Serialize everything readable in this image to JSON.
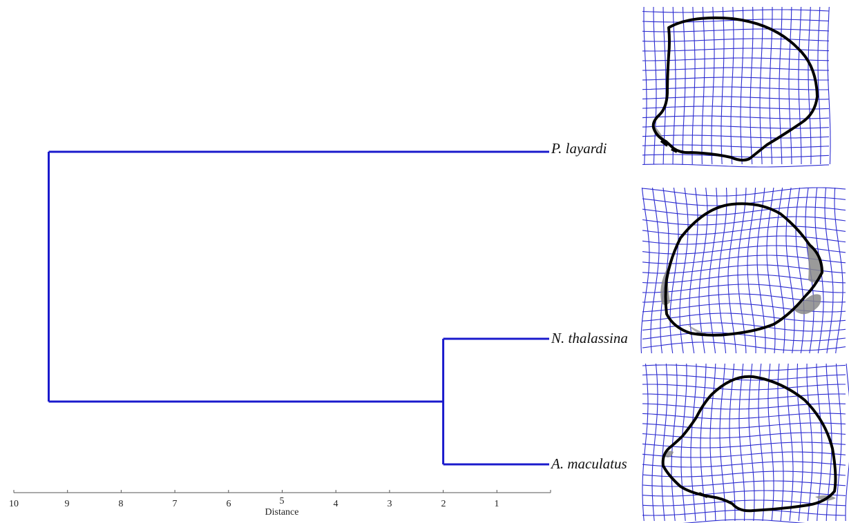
{
  "dendrogram": {
    "leaves": [
      "P. layardi",
      "N. thalassina",
      "A. maculatus"
    ],
    "merges": [
      {
        "members": [
          "N. thalassina",
          "A. maculatus"
        ],
        "distance": 2.0
      },
      {
        "members": [
          "P. layardi",
          "N. thalassina",
          "A. maculatus"
        ],
        "distance": 9.35
      }
    ],
    "branch_color": "#1a1acc"
  },
  "axis": {
    "label": "Distance",
    "range": [
      10,
      0
    ],
    "ticks": [
      "10",
      "9",
      "8",
      "7",
      "6",
      "5",
      "4",
      "3",
      "2",
      "1"
    ]
  },
  "deformation_grids": {
    "grid_color": "#2a2ad0",
    "outline_color": "#000000",
    "shading_color": "#888888"
  }
}
